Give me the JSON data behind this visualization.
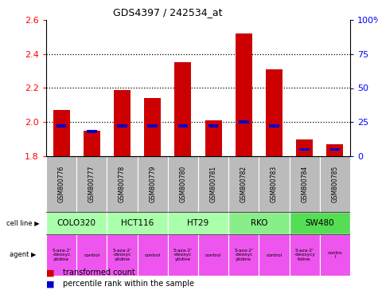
{
  "title": "GDS4397 / 242534_at",
  "samples": [
    "GSM800776",
    "GSM800777",
    "GSM800778",
    "GSM800779",
    "GSM800780",
    "GSM800781",
    "GSM800782",
    "GSM800783",
    "GSM800784",
    "GSM800785"
  ],
  "transformed_count": [
    2.07,
    1.95,
    2.19,
    2.14,
    2.35,
    2.01,
    2.52,
    2.31,
    1.9,
    1.87
  ],
  "percentile_rank": [
    22,
    18,
    22,
    22,
    22,
    22,
    25,
    22,
    5,
    5
  ],
  "ylim": [
    1.8,
    2.6
  ],
  "yticks_left": [
    1.8,
    2.0,
    2.2,
    2.4,
    2.6
  ],
  "yticks_right": [
    0,
    25,
    50,
    75,
    100
  ],
  "right_ylim": [
    0,
    100
  ],
  "bar_color": "#cc0000",
  "percentile_color": "#0000cc",
  "bar_width": 0.55,
  "cell_lines": [
    {
      "label": "COLO320",
      "start": 0,
      "end": 2,
      "color": "#aaffaa"
    },
    {
      "label": "HCT116",
      "start": 2,
      "end": 4,
      "color": "#aaffaa"
    },
    {
      "label": "HT29",
      "start": 4,
      "end": 6,
      "color": "#aaffaa"
    },
    {
      "label": "RKO",
      "start": 6,
      "end": 8,
      "color": "#88ee88"
    },
    {
      "label": "SW480",
      "start": 8,
      "end": 10,
      "color": "#55dd55"
    }
  ],
  "agents": [
    {
      "label": "5-aza-2'\n-deoxyc\nytidine",
      "start": 0,
      "end": 1,
      "color": "#ee55ee"
    },
    {
      "label": "control",
      "start": 1,
      "end": 2,
      "color": "#ee55ee"
    },
    {
      "label": "5-aza-2'\n-deoxyc\nytidine",
      "start": 2,
      "end": 3,
      "color": "#ee55ee"
    },
    {
      "label": "control",
      "start": 3,
      "end": 4,
      "color": "#ee55ee"
    },
    {
      "label": "5-aza-2'\n-deoxyc\nytidine",
      "start": 4,
      "end": 5,
      "color": "#ee55ee"
    },
    {
      "label": "control",
      "start": 5,
      "end": 6,
      "color": "#ee55ee"
    },
    {
      "label": "5-aza-2'\n-deoxyc\nytidine",
      "start": 6,
      "end": 7,
      "color": "#ee55ee"
    },
    {
      "label": "control",
      "start": 7,
      "end": 8,
      "color": "#ee55ee"
    },
    {
      "label": "5-aza-2'\n-deoxycy\ntidine",
      "start": 8,
      "end": 9,
      "color": "#ee55ee"
    },
    {
      "label": "contro\nl",
      "start": 9,
      "end": 10,
      "color": "#ee55ee"
    }
  ],
  "legend_items": [
    {
      "label": "transformed count",
      "color": "#cc0000"
    },
    {
      "label": "percentile rank within the sample",
      "color": "#0000cc"
    }
  ],
  "sample_bg_color": "#bbbbbb",
  "grid_dotted_ticks": [
    2.0,
    2.2,
    2.4
  ]
}
